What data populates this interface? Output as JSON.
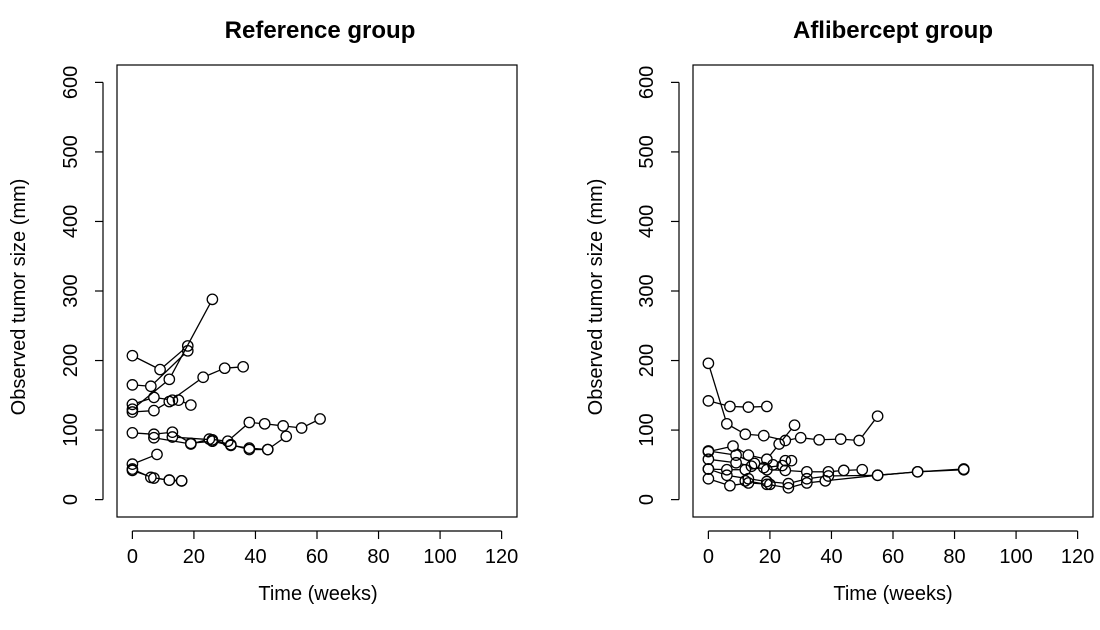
{
  "chart_data": [
    {
      "type": "line",
      "title": "Reference group",
      "xlabel": "Time (weeks)",
      "ylabel": "Observed tumor size (mm)",
      "xlim": [
        -5,
        125
      ],
      "ylim": [
        -25,
        625
      ],
      "xticks": [
        0,
        20,
        40,
        60,
        80,
        100,
        120
      ],
      "yticks": [
        0,
        100,
        200,
        300,
        400,
        500,
        600
      ],
      "series": [
        {
          "x": [
            0,
            9,
            18
          ],
          "y": [
            207,
            187,
            221
          ]
        },
        {
          "x": [
            0,
            12,
            26
          ],
          "y": [
            130,
            173,
            288
          ]
        },
        {
          "x": [
            0,
            6,
            18
          ],
          "y": [
            165,
            163,
            214
          ]
        },
        {
          "x": [
            0,
            7,
            13,
            15,
            19
          ],
          "y": [
            137,
            147,
            143,
            143,
            136
          ]
        },
        {
          "x": [
            0,
            7,
            12,
            23,
            30,
            36
          ],
          "y": [
            126,
            128,
            141,
            176,
            189,
            191
          ]
        },
        {
          "x": [
            0,
            7,
            13,
            19,
            26,
            32,
            38,
            44
          ],
          "y": [
            96,
            94,
            97,
            81,
            84,
            78,
            74,
            72
          ]
        },
        {
          "x": [
            7,
            19,
            25,
            31,
            38,
            43,
            49,
            55,
            61
          ],
          "y": [
            89,
            80,
            87,
            84,
            111,
            109,
            106,
            103,
            116
          ]
        },
        {
          "x": [
            13,
            26,
            32,
            38,
            44,
            50
          ],
          "y": [
            90,
            86,
            79,
            72,
            72,
            91
          ]
        },
        {
          "x": [
            0,
            8
          ],
          "y": [
            51,
            65
          ]
        },
        {
          "x": [
            0,
            6,
            12,
            16
          ],
          "y": [
            44,
            32,
            28,
            27
          ]
        },
        {
          "x": [
            0,
            7,
            12,
            16
          ],
          "y": [
            42,
            31,
            28,
            27
          ]
        }
      ]
    },
    {
      "type": "line",
      "title": "Aflibercept group",
      "xlabel": "Time (weeks)",
      "ylabel": "Observed tumor size (mm)",
      "xlim": [
        -5,
        125
      ],
      "ylim": [
        -25,
        625
      ],
      "xticks": [
        0,
        20,
        40,
        60,
        80,
        100,
        120
      ],
      "yticks": [
        0,
        100,
        200,
        300,
        400,
        500,
        600
      ],
      "series": [
        {
          "x": [
            0,
            6,
            12,
            18,
            25,
            30,
            36,
            43,
            49,
            55
          ],
          "y": [
            196,
            109,
            94,
            92,
            85,
            89,
            86,
            87,
            85,
            120
          ]
        },
        {
          "x": [
            0,
            7,
            13,
            19
          ],
          "y": [
            142,
            134,
            133,
            134
          ]
        },
        {
          "x": [
            0,
            8,
            13,
            19,
            23,
            28
          ],
          "y": [
            69,
            77,
            64,
            58,
            80,
            107
          ]
        },
        {
          "x": [
            0,
            9,
            15,
            21,
            25,
            27
          ],
          "y": [
            70,
            64,
            52,
            50,
            56,
            56
          ]
        },
        {
          "x": [
            0,
            9,
            14,
            19,
            25,
            32,
            39,
            44,
            50
          ],
          "y": [
            58,
            53,
            48,
            43,
            42,
            40,
            40,
            42,
            43
          ]
        },
        {
          "x": [
            0,
            6,
            12,
            18,
            24
          ],
          "y": [
            44,
            43,
            43,
            46,
            49
          ]
        },
        {
          "x": [
            0,
            6,
            13,
            19,
            26,
            32,
            39,
            55,
            68,
            83
          ],
          "y": [
            44,
            35,
            30,
            26,
            23,
            30,
            34,
            35,
            40,
            44
          ]
        },
        {
          "x": [
            0,
            7,
            13,
            20
          ],
          "y": [
            30,
            20,
            24,
            22
          ]
        },
        {
          "x": [
            12,
            19,
            26,
            32,
            38,
            55,
            68,
            83
          ],
          "y": [
            27,
            22,
            17,
            24,
            27,
            35,
            40,
            43
          ]
        }
      ]
    }
  ]
}
